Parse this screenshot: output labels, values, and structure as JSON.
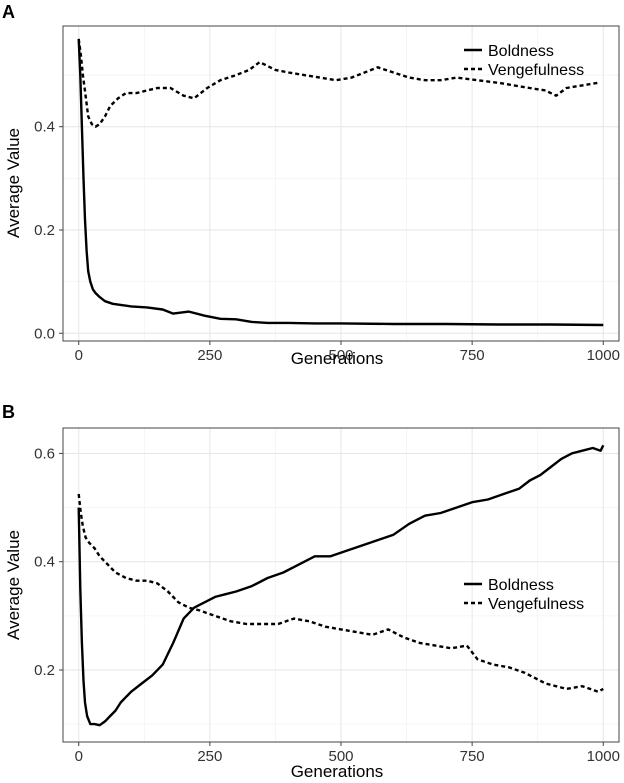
{
  "chart_data": [
    {
      "panel_label": "A",
      "type": "line",
      "title": "",
      "xlabel": "Generations",
      "ylabel": "Average Value",
      "xlim": [
        -30,
        1030
      ],
      "ylim": [
        -0.015,
        0.595
      ],
      "xticks": [
        0,
        250,
        500,
        750,
        1000
      ],
      "xtick_labels": [
        "0",
        "250",
        "500",
        "750",
        "1000"
      ],
      "yticks": [
        0.0,
        0.2,
        0.4
      ],
      "ytick_labels": [
        "0.0",
        "0.2",
        "0.4"
      ],
      "grid": true,
      "legend_position": "top-right",
      "series": [
        {
          "name": "Boldness",
          "style": "solid",
          "points": [
            [
              0,
              0.57
            ],
            [
              3,
              0.5
            ],
            [
              6,
              0.4
            ],
            [
              9,
              0.3
            ],
            [
              12,
              0.22
            ],
            [
              15,
              0.16
            ],
            [
              18,
              0.12
            ],
            [
              22,
              0.1
            ],
            [
              27,
              0.085
            ],
            [
              32,
              0.078
            ],
            [
              40,
              0.07
            ],
            [
              50,
              0.062
            ],
            [
              65,
              0.057
            ],
            [
              80,
              0.055
            ],
            [
              100,
              0.052
            ],
            [
              130,
              0.05
            ],
            [
              160,
              0.046
            ],
            [
              180,
              0.038
            ],
            [
              210,
              0.042
            ],
            [
              240,
              0.034
            ],
            [
              270,
              0.028
            ],
            [
              300,
              0.027
            ],
            [
              330,
              0.022
            ],
            [
              360,
              0.02
            ],
            [
              400,
              0.02
            ],
            [
              450,
              0.019
            ],
            [
              500,
              0.019
            ],
            [
              600,
              0.018
            ],
            [
              700,
              0.018
            ],
            [
              800,
              0.017
            ],
            [
              900,
              0.017
            ],
            [
              1000,
              0.016
            ]
          ]
        },
        {
          "name": "Vengefulness",
          "style": "dashed",
          "points": [
            [
              0,
              0.57
            ],
            [
              4,
              0.54
            ],
            [
              8,
              0.5
            ],
            [
              13,
              0.46
            ],
            [
              18,
              0.42
            ],
            [
              25,
              0.405
            ],
            [
              32,
              0.4
            ],
            [
              40,
              0.405
            ],
            [
              50,
              0.42
            ],
            [
              60,
              0.44
            ],
            [
              75,
              0.455
            ],
            [
              90,
              0.465
            ],
            [
              110,
              0.465
            ],
            [
              130,
              0.47
            ],
            [
              150,
              0.475
            ],
            [
              175,
              0.475
            ],
            [
              200,
              0.46
            ],
            [
              220,
              0.455
            ],
            [
              245,
              0.475
            ],
            [
              270,
              0.49
            ],
            [
              300,
              0.5
            ],
            [
              325,
              0.51
            ],
            [
              345,
              0.525
            ],
            [
              375,
              0.51
            ],
            [
              400,
              0.505
            ],
            [
              430,
              0.5
            ],
            [
              460,
              0.495
            ],
            [
              490,
              0.49
            ],
            [
              520,
              0.495
            ],
            [
              545,
              0.505
            ],
            [
              570,
              0.515
            ],
            [
              600,
              0.505
            ],
            [
              630,
              0.495
            ],
            [
              660,
              0.49
            ],
            [
              690,
              0.49
            ],
            [
              720,
              0.495
            ],
            [
              760,
              0.49
            ],
            [
              800,
              0.485
            ],
            [
              830,
              0.48
            ],
            [
              860,
              0.475
            ],
            [
              890,
              0.47
            ],
            [
              910,
              0.46
            ],
            [
              930,
              0.475
            ],
            [
              960,
              0.48
            ],
            [
              990,
              0.485
            ]
          ]
        }
      ]
    },
    {
      "panel_label": "B",
      "type": "line",
      "title": "",
      "xlabel": "Generations",
      "ylabel": "Average Value",
      "xlim": [
        -30,
        1030
      ],
      "ylim": [
        0.067,
        0.647
      ],
      "xticks": [
        0,
        250,
        500,
        750,
        1000
      ],
      "xtick_labels": [
        "0",
        "250",
        "500",
        "750",
        "1000"
      ],
      "yticks": [
        0.2,
        0.4,
        0.6
      ],
      "ytick_labels": [
        "0.2",
        "0.4",
        "0.6"
      ],
      "grid": true,
      "legend_position": "right",
      "series": [
        {
          "name": "Boldness",
          "style": "solid",
          "points": [
            [
              0,
              0.5
            ],
            [
              3,
              0.35
            ],
            [
              6,
              0.25
            ],
            [
              9,
              0.18
            ],
            [
              12,
              0.14
            ],
            [
              16,
              0.115
            ],
            [
              22,
              0.1
            ],
            [
              30,
              0.1
            ],
            [
              40,
              0.098
            ],
            [
              50,
              0.105
            ],
            [
              60,
              0.115
            ],
            [
              70,
              0.125
            ],
            [
              80,
              0.14
            ],
            [
              90,
              0.15
            ],
            [
              100,
              0.16
            ],
            [
              120,
              0.175
            ],
            [
              140,
              0.19
            ],
            [
              160,
              0.21
            ],
            [
              180,
              0.25
            ],
            [
              200,
              0.295
            ],
            [
              220,
              0.315
            ],
            [
              240,
              0.325
            ],
            [
              260,
              0.335
            ],
            [
              280,
              0.34
            ],
            [
              300,
              0.345
            ],
            [
              330,
              0.355
            ],
            [
              360,
              0.37
            ],
            [
              390,
              0.38
            ],
            [
              420,
              0.395
            ],
            [
              450,
              0.41
            ],
            [
              480,
              0.41
            ],
            [
              510,
              0.42
            ],
            [
              540,
              0.43
            ],
            [
              570,
              0.44
            ],
            [
              600,
              0.45
            ],
            [
              630,
              0.47
            ],
            [
              660,
              0.485
            ],
            [
              690,
              0.49
            ],
            [
              720,
              0.5
            ],
            [
              750,
              0.51
            ],
            [
              780,
              0.515
            ],
            [
              810,
              0.525
            ],
            [
              840,
              0.535
            ],
            [
              860,
              0.55
            ],
            [
              880,
              0.56
            ],
            [
              900,
              0.575
            ],
            [
              920,
              0.59
            ],
            [
              940,
              0.6
            ],
            [
              960,
              0.605
            ],
            [
              980,
              0.61
            ],
            [
              995,
              0.605
            ],
            [
              1000,
              0.615
            ]
          ]
        },
        {
          "name": "Vengefulness",
          "style": "dashed",
          "points": [
            [
              0,
              0.525
            ],
            [
              4,
              0.49
            ],
            [
              8,
              0.465
            ],
            [
              13,
              0.445
            ],
            [
              20,
              0.435
            ],
            [
              30,
              0.425
            ],
            [
              40,
              0.41
            ],
            [
              55,
              0.395
            ],
            [
              70,
              0.38
            ],
            [
              90,
              0.37
            ],
            [
              110,
              0.365
            ],
            [
              130,
              0.365
            ],
            [
              150,
              0.36
            ],
            [
              170,
              0.345
            ],
            [
              190,
              0.325
            ],
            [
              210,
              0.315
            ],
            [
              230,
              0.31
            ],
            [
              260,
              0.3
            ],
            [
              290,
              0.29
            ],
            [
              320,
              0.285
            ],
            [
              350,
              0.285
            ],
            [
              380,
              0.285
            ],
            [
              410,
              0.295
            ],
            [
              440,
              0.29
            ],
            [
              470,
              0.28
            ],
            [
              500,
              0.275
            ],
            [
              530,
              0.27
            ],
            [
              560,
              0.265
            ],
            [
              590,
              0.275
            ],
            [
              620,
              0.26
            ],
            [
              650,
              0.25
            ],
            [
              680,
              0.245
            ],
            [
              710,
              0.24
            ],
            [
              740,
              0.245
            ],
            [
              760,
              0.22
            ],
            [
              790,
              0.21
            ],
            [
              820,
              0.205
            ],
            [
              850,
              0.195
            ],
            [
              870,
              0.185
            ],
            [
              890,
              0.175
            ],
            [
              910,
              0.17
            ],
            [
              930,
              0.165
            ],
            [
              960,
              0.17
            ],
            [
              990,
              0.16
            ],
            [
              1000,
              0.165
            ]
          ]
        }
      ]
    }
  ]
}
